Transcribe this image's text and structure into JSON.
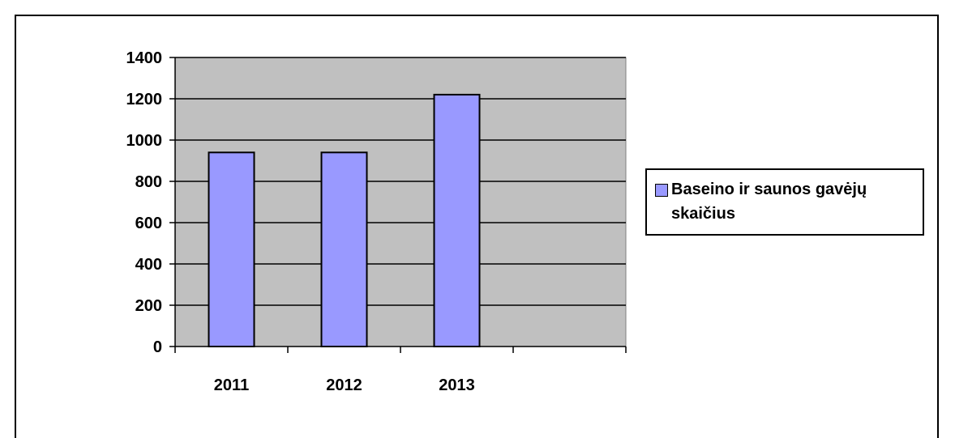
{
  "chart_data": {
    "type": "bar",
    "categories": [
      "2011",
      "2012",
      "2013",
      ""
    ],
    "series": [
      {
        "name": "Baseino ir saunos gavėjų skaičius",
        "values": [
          940,
          940,
          1220,
          null
        ]
      }
    ],
    "ylim": [
      0,
      1400
    ],
    "yticks": [
      "0",
      "200",
      "400",
      "600",
      "800",
      "1000",
      "1200",
      "1400"
    ],
    "grid": true,
    "legend_position": "right",
    "colors": {
      "bar": "#9999ff",
      "plot_area": "#c0c0c0",
      "frame": "#000000"
    }
  }
}
